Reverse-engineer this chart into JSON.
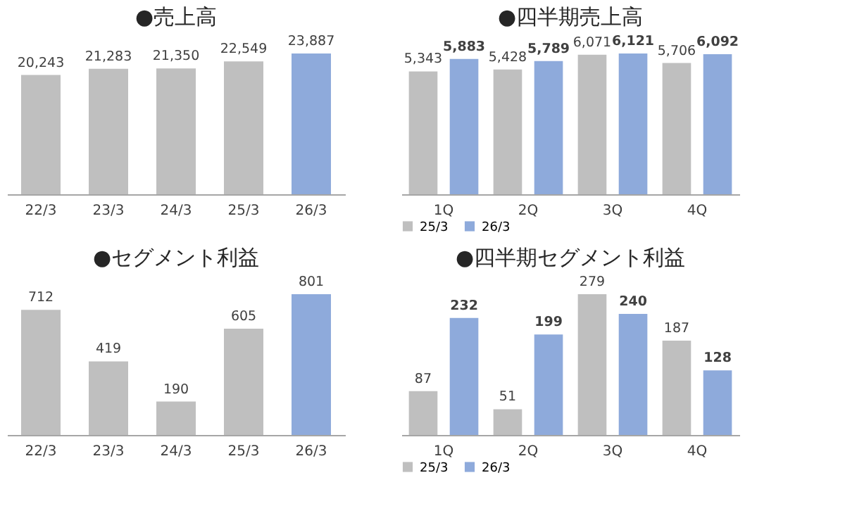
{
  "chart_data": [
    {
      "type": "bar",
      "title": "●売上高",
      "categories": [
        "22/3",
        "23/3",
        "24/3",
        "25/3",
        "26/3"
      ],
      "values": [
        20243,
        21283,
        21350,
        22549,
        23887
      ],
      "colors": [
        "#bfbfbf",
        "#bfbfbf",
        "#bfbfbf",
        "#bfbfbf",
        "#8eaadb"
      ],
      "value_labels": [
        "20,243",
        "21,283",
        "21,350",
        "22,549",
        "23,887"
      ]
    },
    {
      "type": "bar",
      "title": "●四半期売上高",
      "categories": [
        "1Q",
        "2Q",
        "3Q",
        "4Q"
      ],
      "series": [
        {
          "name": "25/3",
          "color": "#bfbfbf",
          "values": [
            5343,
            5428,
            6071,
            5706
          ],
          "value_labels": [
            "5,343",
            "5,428",
            "6,071",
            "5,706"
          ]
        },
        {
          "name": "26/3",
          "color": "#8eaadb",
          "values": [
            5883,
            5789,
            6121,
            6092
          ],
          "value_labels": [
            "5,883",
            "5,789",
            "6,121",
            "6,092"
          ]
        }
      ],
      "legend": "bottom"
    },
    {
      "type": "bar",
      "title": "●セグメント利益",
      "categories": [
        "22/3",
        "23/3",
        "24/3",
        "25/3",
        "26/3"
      ],
      "values": [
        712,
        419,
        190,
        605,
        801
      ],
      "colors": [
        "#bfbfbf",
        "#bfbfbf",
        "#bfbfbf",
        "#bfbfbf",
        "#8eaadb"
      ],
      "data_labels": true
    },
    {
      "type": "bar",
      "title": "●四半期セグメント利益",
      "categories": [
        "1Q",
        "2Q",
        "3Q",
        "4Q"
      ],
      "series": [
        {
          "name": "25/3",
          "color": "#bfbfbf",
          "values": [
            87,
            51,
            279,
            187
          ]
        },
        {
          "name": "26/3",
          "color": "#8eaadb",
          "values": [
            232,
            199,
            240,
            128
          ]
        }
      ],
      "data_labels": true,
      "legend": "bottom"
    }
  ]
}
